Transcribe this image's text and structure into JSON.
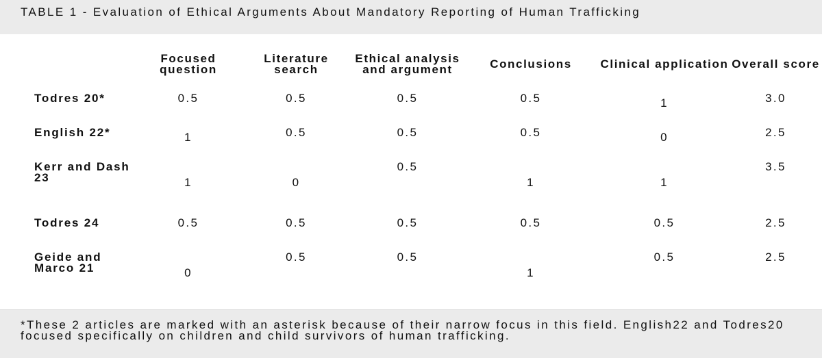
{
  "header": {
    "title": "TABLE 1 - Evaluation of Ethical Arguments About Mandatory Reporting of Human Trafficking"
  },
  "table": {
    "columns": [
      "Focused question",
      "Literature search",
      "Ethical analysis and argument",
      "Conclusions",
      "Clinical application",
      "Overall score"
    ],
    "rows": [
      {
        "label": "Todres 20*",
        "cells": [
          "0.5",
          "0.5",
          "0.5",
          "0.5",
          "1",
          "3.0"
        ]
      },
      {
        "label": "English 22*",
        "cells": [
          "1",
          "0.5",
          "0.5",
          "0.5",
          "0",
          "2.5"
        ]
      },
      {
        "label": "Kerr and Dash 23",
        "cells": [
          "1",
          "0",
          "0.5",
          "1",
          "1",
          "3.5"
        ]
      },
      {
        "label": "Todres 24",
        "cells": [
          "0.5",
          "0.5",
          "0.5",
          "0.5",
          "0.5",
          "2.5"
        ]
      },
      {
        "label": "Geide and Marco 21",
        "cells": [
          "0",
          "0.5",
          "0.5",
          "1",
          "0.5",
          "2.5"
        ]
      }
    ]
  },
  "footnote": "*These 2 articles are marked with an asterisk because of their narrow focus in this field. English22 and Todres20 focused specifically on children and child survivors of human trafficking."
}
